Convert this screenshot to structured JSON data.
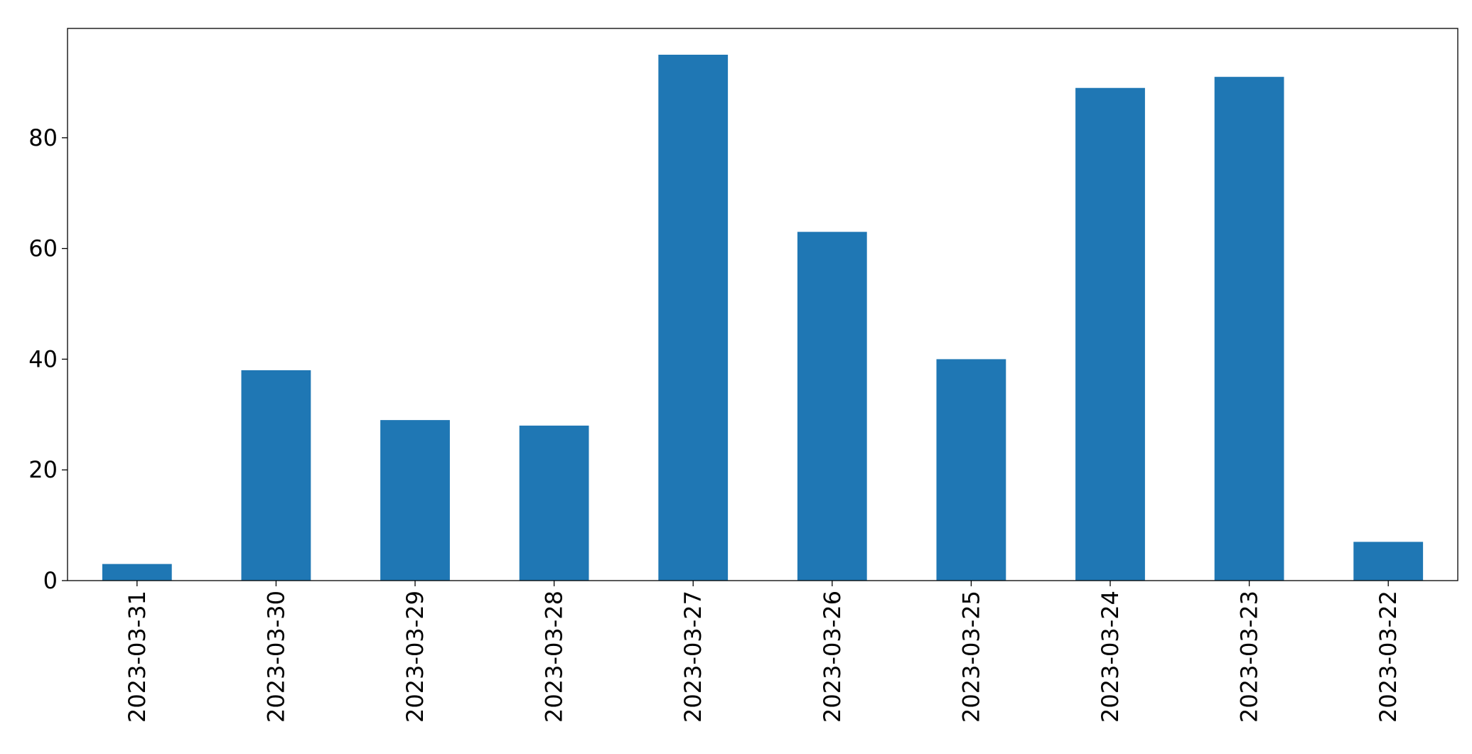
{
  "chart_data": {
    "type": "bar",
    "categories": [
      "2023-03-31",
      "2023-03-30",
      "2023-03-29",
      "2023-03-28",
      "2023-03-27",
      "2023-03-26",
      "2023-03-25",
      "2023-03-24",
      "2023-03-23",
      "2023-03-22"
    ],
    "values": [
      3,
      38,
      29,
      28,
      95,
      63,
      40,
      89,
      91,
      7
    ],
    "color": "#1f77b4",
    "ylim": [
      0,
      99.75
    ],
    "yticks": [
      0,
      20,
      40,
      60,
      80
    ],
    "grid": false
  }
}
